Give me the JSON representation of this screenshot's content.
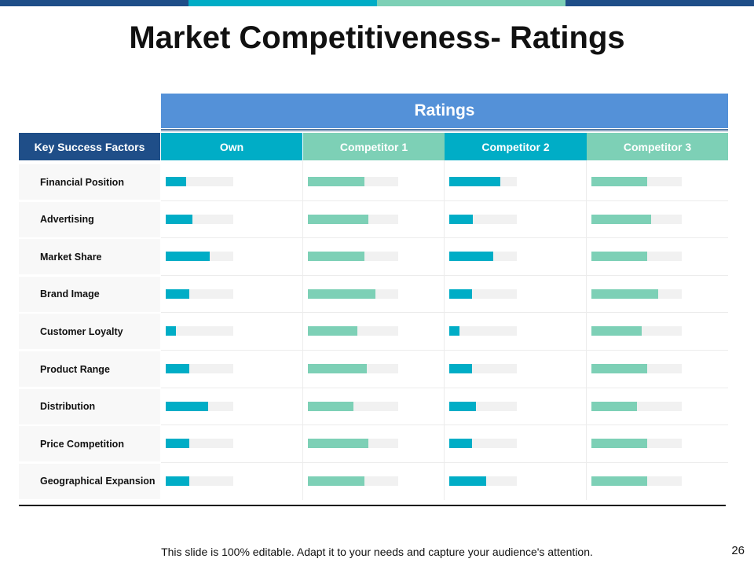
{
  "colors": {
    "dark_blue": "#1f4e88",
    "teal": "#00adc6",
    "mint": "#7dd0b6",
    "ratings_blue": "#5491d8",
    "bar_track": "#f1f1f1"
  },
  "title": "Market Competitiveness- Ratings",
  "ratings_header": "Ratings",
  "key_factors_header": "Key Success Factors",
  "columns": [
    {
      "label": "Own",
      "color": "#00adc6"
    },
    {
      "label": "Competitor 1",
      "color": "#7dd0b6"
    },
    {
      "label": "Competitor 2",
      "color": "#00adc6"
    },
    {
      "label": "Competitor 3",
      "color": "#7dd0b6"
    }
  ],
  "rows": [
    {
      "label": "Financial Position",
      "ratings": [
        0.3,
        0.63,
        0.75,
        0.62
      ]
    },
    {
      "label": "Advertising",
      "ratings": [
        0.4,
        0.67,
        0.35,
        0.66
      ]
    },
    {
      "label": "Market Share",
      "ratings": [
        0.65,
        0.63,
        0.65,
        0.62
      ]
    },
    {
      "label": "Brand Image",
      "ratings": [
        0.35,
        0.75,
        0.34,
        0.74
      ]
    },
    {
      "label": "Customer  Loyalty",
      "ratings": [
        0.15,
        0.55,
        0.15,
        0.56
      ]
    },
    {
      "label": "Product Range",
      "ratings": [
        0.35,
        0.65,
        0.34,
        0.62
      ]
    },
    {
      "label": "Distribution",
      "ratings": [
        0.63,
        0.5,
        0.4,
        0.5
      ]
    },
    {
      "label": "Price Competition",
      "ratings": [
        0.35,
        0.67,
        0.34,
        0.62
      ]
    },
    {
      "label": "Geographical Expansion",
      "ratings": [
        0.35,
        0.63,
        0.55,
        0.62
      ]
    }
  ],
  "footer": "This slide is 100% editable. Adapt it to your needs and capture your audience's attention.",
  "page_number": "26"
}
